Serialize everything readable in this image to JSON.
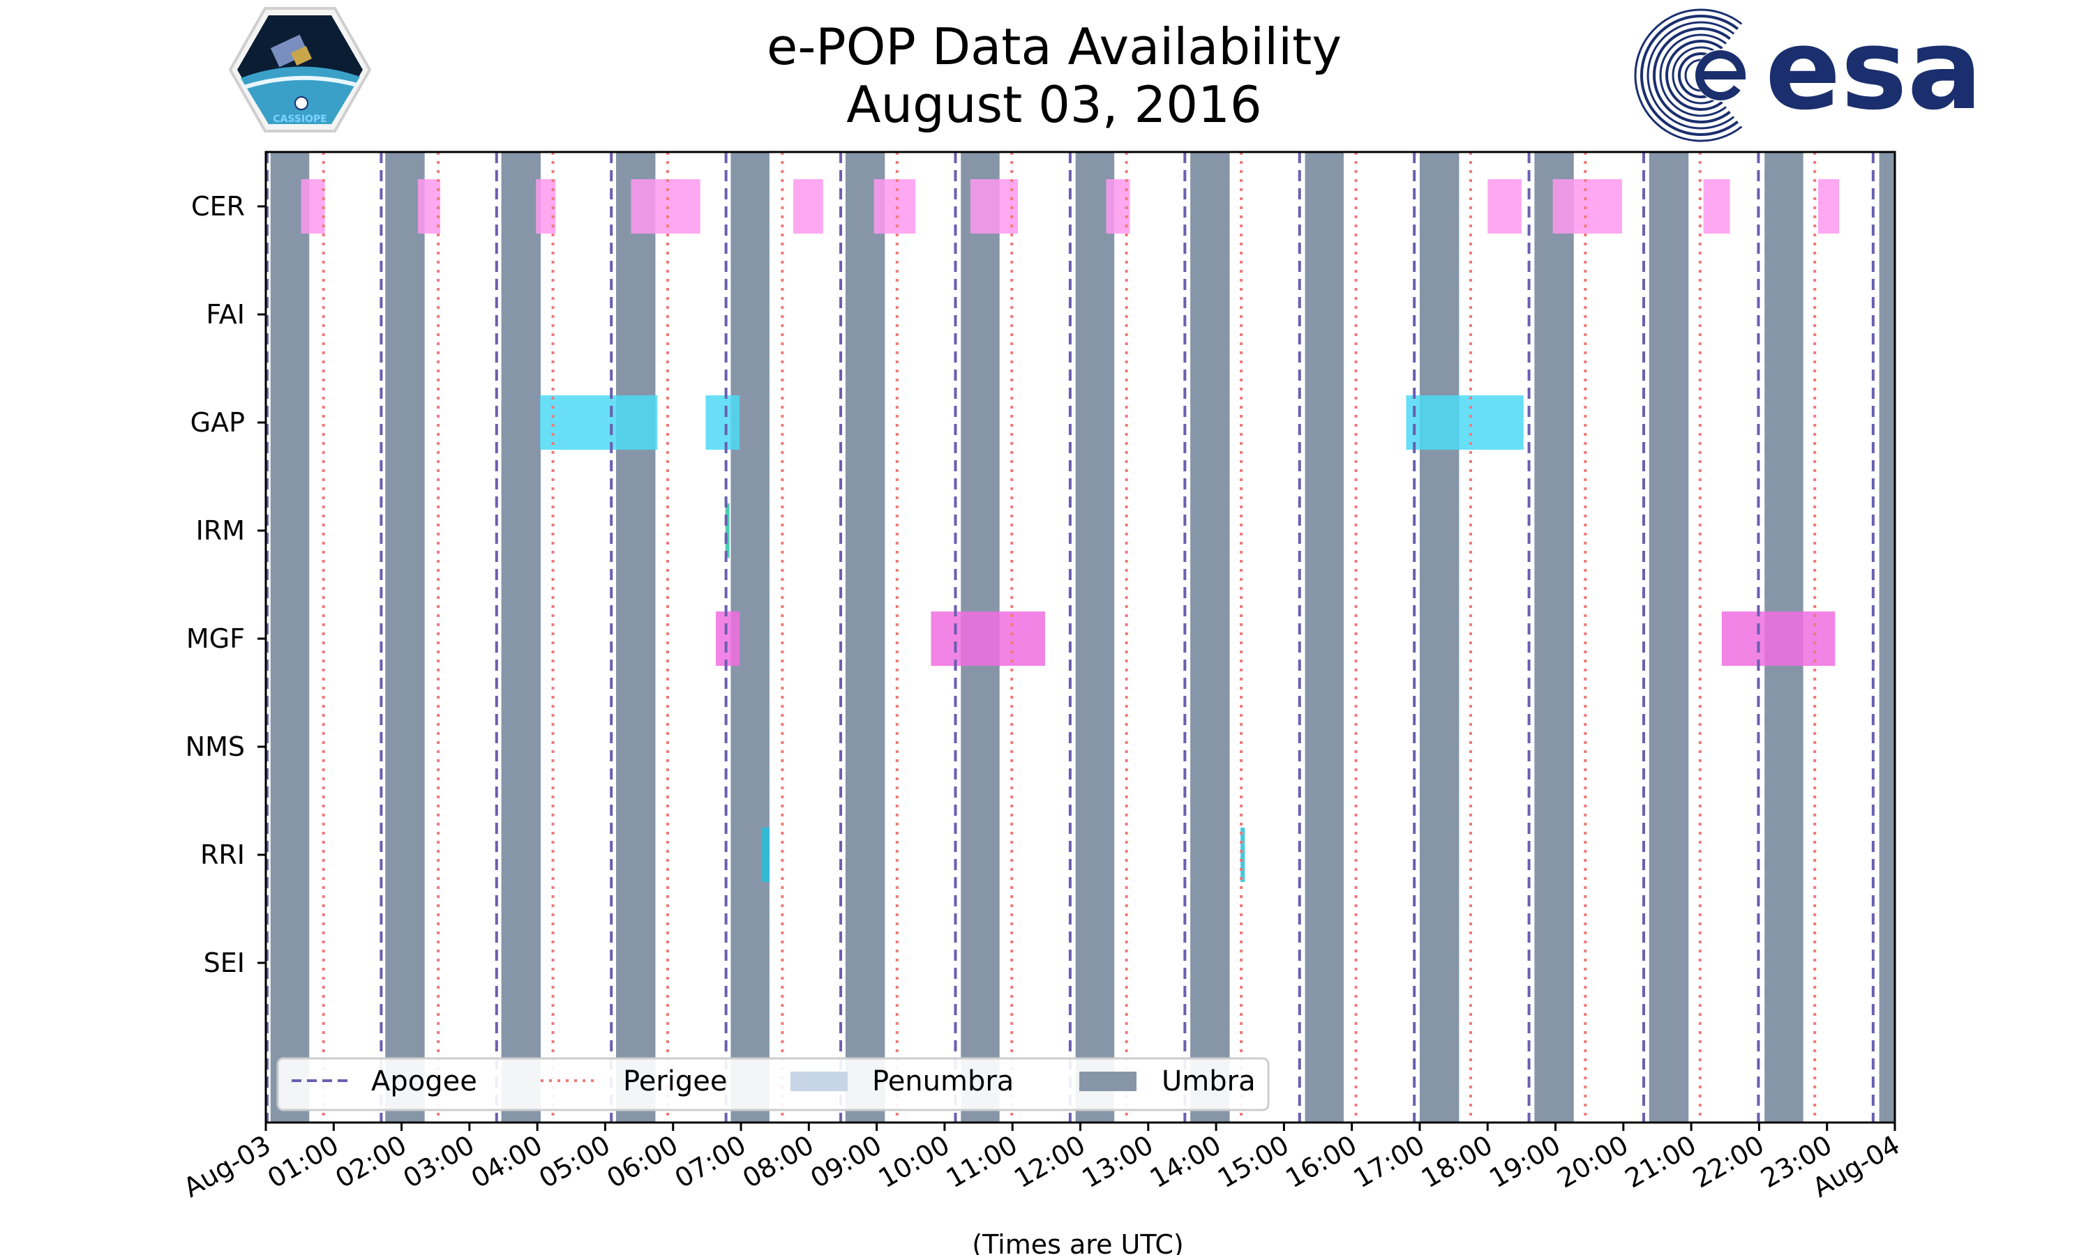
{
  "chart_data": {
    "type": "timeline",
    "title": [
      "e-POP Data Availability",
      "August 03, 2016"
    ],
    "xlabel": "(Times are UTC)",
    "x_range_hours": [
      0,
      24
    ],
    "x_tick_labels": [
      "Aug-03",
      "01:00",
      "02:00",
      "03:00",
      "04:00",
      "05:00",
      "06:00",
      "07:00",
      "08:00",
      "09:00",
      "10:00",
      "11:00",
      "12:00",
      "13:00",
      "14:00",
      "15:00",
      "16:00",
      "17:00",
      "18:00",
      "19:00",
      "20:00",
      "21:00",
      "22:00",
      "23:00",
      "Aug-04"
    ],
    "instruments": [
      "CER",
      "FAI",
      "GAP",
      "IRM",
      "MGF",
      "NMS",
      "RRI",
      "SEI"
    ],
    "apogee_hours": [
      0.02,
      1.7,
      3.4,
      5.09,
      6.78,
      8.47,
      10.16,
      11.85,
      13.54,
      15.23,
      16.92,
      18.61,
      20.3,
      21.99,
      23.68
    ],
    "perigee_hours": [
      0.85,
      2.54,
      4.23,
      5.92,
      7.61,
      9.3,
      10.99,
      12.68,
      14.37,
      16.06,
      17.75,
      19.44,
      21.13,
      22.82
    ],
    "umbra_intervals": [
      [
        0.07,
        0.64
      ],
      [
        1.76,
        2.34
      ],
      [
        3.47,
        4.05
      ],
      [
        5.16,
        5.74
      ],
      [
        6.85,
        7.42
      ],
      [
        8.54,
        9.12
      ],
      [
        10.24,
        10.81
      ],
      [
        11.93,
        12.5
      ],
      [
        13.62,
        14.2
      ],
      [
        15.31,
        15.88
      ],
      [
        17.0,
        17.58
      ],
      [
        18.69,
        19.27
      ],
      [
        20.38,
        20.96
      ],
      [
        22.08,
        22.65
      ],
      [
        23.77,
        24.0
      ]
    ],
    "series": [
      {
        "name": "CER",
        "color": "#ff99f0",
        "intervals": [
          [
            0.52,
            0.87
          ],
          [
            2.24,
            2.57
          ],
          [
            3.98,
            4.27
          ],
          [
            5.38,
            6.4
          ],
          [
            7.77,
            8.21
          ],
          [
            8.96,
            9.57
          ],
          [
            10.38,
            11.08
          ],
          [
            12.38,
            12.73
          ],
          [
            18.0,
            18.5
          ],
          [
            18.96,
            19.98
          ],
          [
            21.18,
            21.57
          ],
          [
            22.87,
            23.18
          ]
        ]
      },
      {
        "name": "FAI",
        "color": "#ff99f0",
        "intervals": []
      },
      {
        "name": "GAP",
        "color": "#4dd9f5",
        "intervals": [
          [
            4.04,
            5.77
          ],
          [
            6.48,
            6.98
          ]
        ]
      },
      {
        "name": "GAP",
        "color": "#4dd9f5",
        "intervals": [
          [
            16.8,
            18.53
          ]
        ]
      },
      {
        "name": "IRM",
        "color": "#2ec4a6",
        "intervals": [
          [
            6.77,
            6.82
          ]
        ]
      },
      {
        "name": "MGF",
        "color": "#f06ee0",
        "intervals": [
          [
            6.63,
            6.98
          ],
          [
            9.8,
            11.48
          ],
          [
            21.45,
            23.12
          ]
        ]
      },
      {
        "name": "NMS",
        "color": "#f06ee0",
        "intervals": []
      },
      {
        "name": "RRI",
        "color": "#22c0dc",
        "intervals": [
          [
            7.31,
            7.42
          ],
          [
            14.36,
            14.42
          ]
        ]
      },
      {
        "name": "SEI",
        "color": "#22c0dc",
        "intervals": []
      }
    ],
    "legend": {
      "placement": "lower-left",
      "entries": [
        {
          "label": "Apogee",
          "style": "dashed",
          "color": "#6a5fb0"
        },
        {
          "label": "Perigee",
          "style": "dotted",
          "color": "#f07a78"
        },
        {
          "label": "Penumbra",
          "style": "patch",
          "color": "#c7d6e6"
        },
        {
          "label": "Umbra",
          "style": "patch",
          "color": "#8696a8"
        }
      ]
    },
    "logos": {
      "left": "CASSIOPE",
      "right": "esa"
    }
  },
  "colors": {
    "umbra": "#8696a8",
    "apogee": "#6a5fb0",
    "perigee": "#f07a78",
    "esa_blue": "#1b2f6e"
  }
}
